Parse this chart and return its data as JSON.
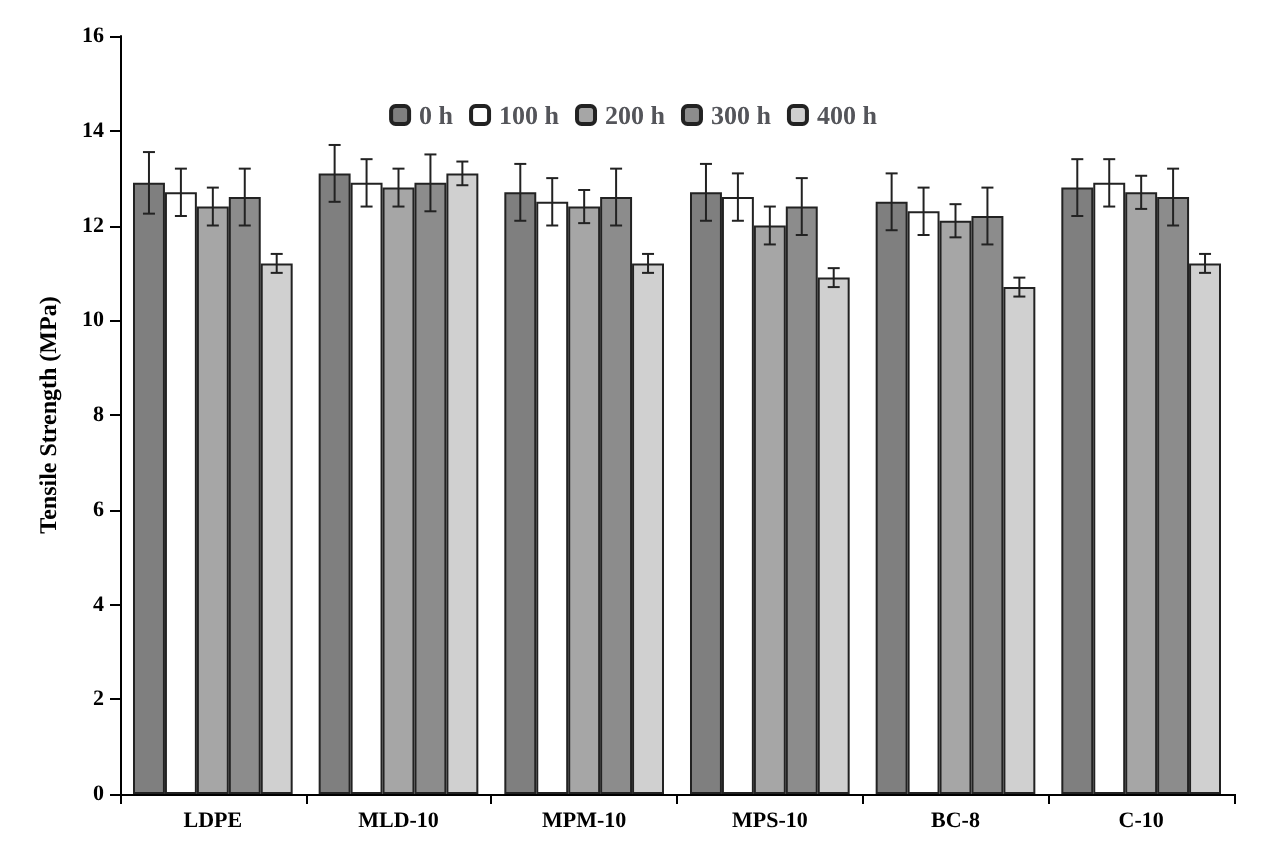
{
  "chart_data": {
    "type": "bar",
    "ylabel": "Tensile Strength (MPa)",
    "categories": [
      "LDPE",
      "MLD-10",
      "MPM-10",
      "MPS-10",
      "BC-8",
      "C-10"
    ],
    "series": [
      {
        "name": "0 h",
        "color": "#7f7f7f",
        "values": [
          12.9,
          13.1,
          12.7,
          12.7,
          12.5,
          12.8
        ],
        "errors": [
          0.65,
          0.6,
          0.6,
          0.6,
          0.6,
          0.6
        ]
      },
      {
        "name": "100 h",
        "color": "#ffffff",
        "values": [
          12.7,
          12.9,
          12.5,
          12.6,
          12.3,
          12.9
        ],
        "errors": [
          0.5,
          0.5,
          0.5,
          0.5,
          0.5,
          0.5
        ]
      },
      {
        "name": "200 h",
        "color": "#a6a6a6",
        "values": [
          12.4,
          12.8,
          12.4,
          12.0,
          12.1,
          12.7
        ],
        "errors": [
          0.4,
          0.4,
          0.35,
          0.4,
          0.35,
          0.35
        ]
      },
      {
        "name": "300 h",
        "color": "#8c8c8c",
        "values": [
          12.6,
          12.9,
          12.6,
          12.4,
          12.2,
          12.6
        ],
        "errors": [
          0.6,
          0.6,
          0.6,
          0.6,
          0.6,
          0.6
        ]
      },
      {
        "name": "400 h",
        "color": "#d0d0d0",
        "values": [
          11.2,
          13.1,
          11.2,
          10.9,
          10.7,
          11.2
        ],
        "errors": [
          0.2,
          0.25,
          0.2,
          0.2,
          0.2,
          0.2
        ]
      }
    ],
    "ylim": [
      0,
      16
    ],
    "yticks": [
      0,
      2,
      4,
      6,
      8,
      10,
      12,
      14,
      16
    ],
    "legend": "top",
    "grid": false
  }
}
